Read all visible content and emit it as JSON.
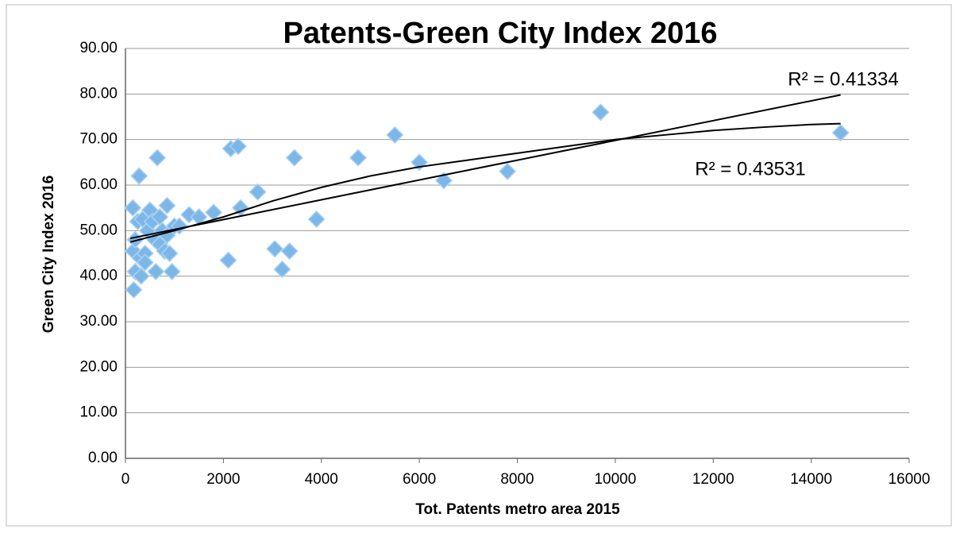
{
  "chart_data": {
    "type": "scatter",
    "title": "Patents-Green City Index 2016",
    "x_label": "Tot. Patents metro area 2015",
    "y_label": "Green City Index 2016",
    "color": "#7db7e8",
    "x": [
      150,
      160,
      170,
      200,
      200,
      250,
      280,
      300,
      320,
      350,
      400,
      400,
      450,
      500,
      550,
      600,
      620,
      650,
      700,
      700,
      750,
      800,
      850,
      850,
      900,
      950,
      1000,
      1100,
      1300,
      1500,
      1800,
      2100,
      2150,
      2300,
      2350,
      2700,
      3050,
      3200,
      3350,
      3450,
      3900,
      4750,
      5500,
      6000,
      6500,
      7800,
      9700,
      14600
    ],
    "values": [
      55,
      45.5,
      37,
      41,
      48,
      52,
      62,
      44,
      40,
      52.5,
      45,
      43,
      50,
      54.5,
      52,
      48,
      41,
      66,
      53,
      47,
      50,
      45.5,
      55.5,
      49,
      45,
      41,
      51,
      51,
      53.5,
      53,
      54,
      43.5,
      68,
      68.5,
      55,
      58.5,
      46,
      41.5,
      45.5,
      66,
      52.5,
      66,
      71,
      65,
      61,
      63,
      76,
      71.5
    ],
    "trendlines": [
      {
        "kind": "linear",
        "label": "R² = 0.41334",
        "x": [
          100,
          14600
        ],
        "values": [
          48.3,
          79.8
        ]
      },
      {
        "kind": "logarithmic",
        "label": "R² = 0.43531",
        "x": [
          100,
          1000,
          2000,
          3000,
          4000,
          5000,
          6000,
          7000,
          8000,
          9000,
          10000,
          11000,
          12000,
          13000,
          14000,
          14600
        ],
        "values": [
          47.5,
          50,
          53,
          56.5,
          59.5,
          62,
          64,
          65.5,
          67,
          68.5,
          70,
          71,
          72,
          72.7,
          73.3,
          73.5
        ]
      }
    ],
    "xlim": [
      0,
      16000
    ],
    "xticks": [
      0,
      2000,
      4000,
      6000,
      8000,
      10000,
      12000,
      14000,
      16000
    ],
    "ylim": [
      0,
      90
    ],
    "yticks": [
      {
        "value": 0,
        "label": "0.00"
      },
      {
        "value": 10,
        "label": "10.00"
      },
      {
        "value": 20,
        "label": "20.00"
      },
      {
        "value": 30,
        "label": "30.00"
      },
      {
        "value": 40,
        "label": "40.00"
      },
      {
        "value": 50,
        "label": "50.00"
      },
      {
        "value": 60,
        "label": "60.00"
      },
      {
        "value": 70,
        "label": "70.00"
      },
      {
        "value": 80,
        "label": "80.00"
      },
      {
        "value": 90,
        "label": "90.00"
      }
    ],
    "grid": true
  }
}
